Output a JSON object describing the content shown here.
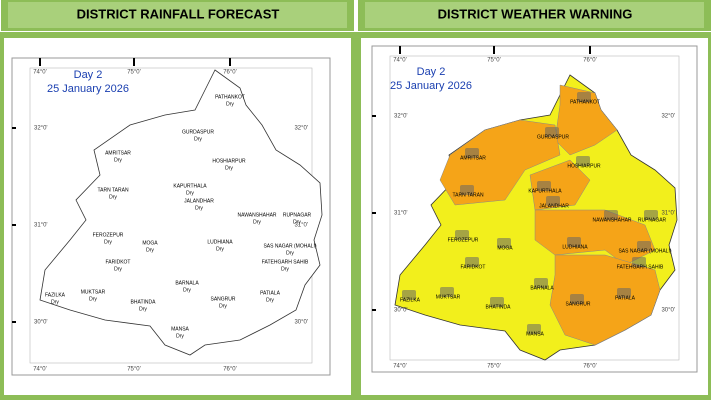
{
  "panels": [
    {
      "title": "DISTRICT RAINFALL FORECAST",
      "day": "Day 2",
      "date": "25 January 2026",
      "lon_labels": [
        "74°0'",
        "75°0'",
        "76°0'"
      ],
      "lat_labels": [
        "32°0'",
        "31°0'",
        "30°0'"
      ],
      "districts": [
        {
          "name": "PATHANKOT",
          "status": "Dry"
        },
        {
          "name": "GURDASPUR",
          "status": "Dry"
        },
        {
          "name": "AMRITSAR",
          "status": "Dry"
        },
        {
          "name": "HOSHIARPUR",
          "status": "Dry"
        },
        {
          "name": "TARN TARAN",
          "status": "Dry"
        },
        {
          "name": "KAPURTHALA",
          "status": "Dry"
        },
        {
          "name": "JALANDHAR",
          "status": "Dry"
        },
        {
          "name": "NAWANSHAHAR",
          "status": "Dry"
        },
        {
          "name": "RUPNAGAR",
          "status": "Dry"
        },
        {
          "name": "FEROZEPUR",
          "status": "Dry"
        },
        {
          "name": "MOGA",
          "status": "Dry"
        },
        {
          "name": "LUDHIANA",
          "status": "Dry"
        },
        {
          "name": "SAS NAGAR (MOHALI)",
          "status": "Dry"
        },
        {
          "name": "FARIDKOT",
          "status": "Dry"
        },
        {
          "name": "FATEHGARH SAHIB",
          "status": "Dry"
        },
        {
          "name": "BARNALA",
          "status": "Dry"
        },
        {
          "name": "FAZILKA",
          "status": "Dry"
        },
        {
          "name": "MUKTSAR",
          "status": "Dry"
        },
        {
          "name": "SANGRUR",
          "status": "Dry"
        },
        {
          "name": "PATIALA",
          "status": "Dry"
        },
        {
          "name": "BHATINDA",
          "status": "Dry"
        },
        {
          "name": "MANSA",
          "status": "Dry"
        }
      ]
    },
    {
      "title": "DISTRICT WEATHER WARNING",
      "day": "Day 2",
      "date": "25 January 2026",
      "lon_labels": [
        "74°0'",
        "75°0'",
        "76°0'"
      ],
      "lat_labels": [
        "32°0'",
        "31°0'",
        "30°0'"
      ],
      "districts": [
        {
          "name": "PATHANKOT"
        },
        {
          "name": "GURDASPUR"
        },
        {
          "name": "AMRITSAR"
        },
        {
          "name": "HOSHIARPUR"
        },
        {
          "name": "TARN TARAN"
        },
        {
          "name": "KAPURTHALA"
        },
        {
          "name": "JALANDHAR"
        },
        {
          "name": "NAWANSHAHAR"
        },
        {
          "name": "RUPNAGAR"
        },
        {
          "name": "FEROZEPUR"
        },
        {
          "name": "MOGA"
        },
        {
          "name": "LUDHIANA"
        },
        {
          "name": "SAS NAGAR (MOHALI)"
        },
        {
          "name": "FARIDKOT"
        },
        {
          "name": "FATEHGARH SAHIB"
        },
        {
          "name": "BARNALA"
        },
        {
          "name": "FAZILKA"
        },
        {
          "name": "MUKTSAR"
        },
        {
          "name": "SANGRUR"
        },
        {
          "name": "PATIALA"
        },
        {
          "name": "BHATINDA"
        },
        {
          "name": "MANSA"
        }
      ]
    }
  ]
}
